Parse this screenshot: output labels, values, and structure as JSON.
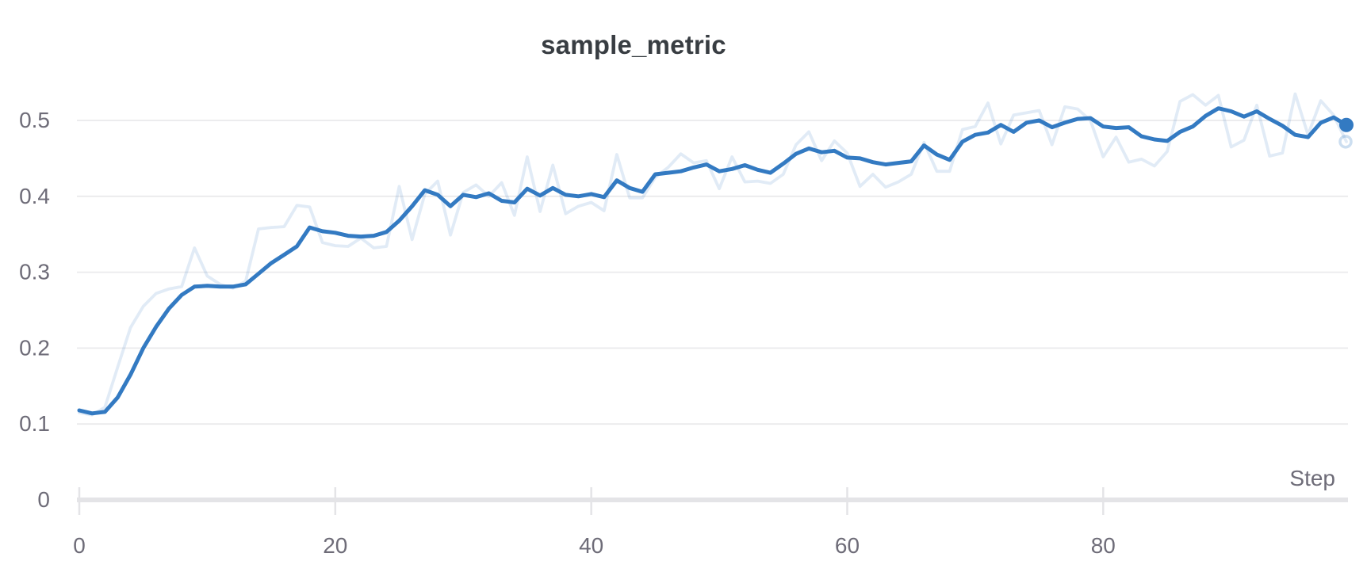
{
  "chart": {
    "title": "sample_metric",
    "x_axis_label": "Step"
  },
  "colors": {
    "line": "#337ac2",
    "raw_line_opacity": 0.15,
    "gridline": "#eaeaec",
    "axis_bar": "#e4e4e7",
    "tick_text": "#6e6c78",
    "title_text": "#383d42",
    "background": "#ffffff"
  },
  "chart_data": {
    "type": "line",
    "title": "sample_metric",
    "xlabel": "Step",
    "ylabel": "",
    "xlim": [
      0,
      99
    ],
    "ylim": [
      0,
      0.54
    ],
    "xticks": [
      0,
      20,
      40,
      60,
      80
    ],
    "yticks": [
      0,
      0.1,
      0.2,
      0.3,
      0.4,
      0.5
    ],
    "grid": "horizontal",
    "legend_position": "none",
    "x_description": "Step index, consecutive integers 0-99",
    "series": [
      {
        "name": "sample_metric (raw)",
        "style": "faded",
        "opacity": 0.15,
        "end_dot": "ring",
        "final_value": 0.472,
        "values": [
          0.115,
          0.112,
          0.122,
          0.175,
          0.227,
          0.255,
          0.272,
          0.278,
          0.281,
          0.332,
          0.295,
          0.284,
          0.279,
          0.288,
          0.357,
          0.359,
          0.36,
          0.388,
          0.386,
          0.339,
          0.335,
          0.334,
          0.345,
          0.332,
          0.334,
          0.413,
          0.343,
          0.403,
          0.42,
          0.349,
          0.405,
          0.415,
          0.4,
          0.418,
          0.375,
          0.452,
          0.38,
          0.441,
          0.377,
          0.387,
          0.392,
          0.381,
          0.455,
          0.398,
          0.398,
          0.425,
          0.438,
          0.456,
          0.444,
          0.447,
          0.41,
          0.452,
          0.419,
          0.42,
          0.417,
          0.429,
          0.468,
          0.485,
          0.447,
          0.473,
          0.457,
          0.413,
          0.429,
          0.412,
          0.419,
          0.429,
          0.471,
          0.433,
          0.433,
          0.488,
          0.492,
          0.523,
          0.469,
          0.507,
          0.51,
          0.513,
          0.468,
          0.518,
          0.515,
          0.5,
          0.452,
          0.478,
          0.445,
          0.449,
          0.44,
          0.459,
          0.525,
          0.534,
          0.52,
          0.533,
          0.465,
          0.474,
          0.52,
          0.453,
          0.457,
          0.535,
          0.481,
          0.526,
          0.507,
          0.472
        ]
      },
      {
        "name": "sample_metric (smoothed)",
        "style": "solid",
        "opacity": 1,
        "end_dot": "filled",
        "final_value": 0.494,
        "values": [
          0.118,
          0.114,
          0.116,
          0.135,
          0.165,
          0.2,
          0.228,
          0.252,
          0.27,
          0.281,
          0.282,
          0.281,
          0.281,
          0.284,
          0.298,
          0.312,
          0.323,
          0.334,
          0.359,
          0.354,
          0.352,
          0.348,
          0.347,
          0.348,
          0.353,
          0.368,
          0.387,
          0.408,
          0.402,
          0.387,
          0.402,
          0.399,
          0.404,
          0.394,
          0.392,
          0.41,
          0.401,
          0.411,
          0.402,
          0.4,
          0.403,
          0.399,
          0.421,
          0.411,
          0.406,
          0.429,
          0.431,
          0.433,
          0.438,
          0.442,
          0.433,
          0.436,
          0.441,
          0.435,
          0.431,
          0.443,
          0.456,
          0.463,
          0.458,
          0.46,
          0.451,
          0.45,
          0.445,
          0.442,
          0.444,
          0.446,
          0.467,
          0.455,
          0.448,
          0.472,
          0.481,
          0.484,
          0.494,
          0.485,
          0.497,
          0.5,
          0.491,
          0.497,
          0.502,
          0.503,
          0.492,
          0.49,
          0.491,
          0.479,
          0.475,
          0.473,
          0.485,
          0.492,
          0.506,
          0.516,
          0.512,
          0.505,
          0.512,
          0.502,
          0.493,
          0.481,
          0.478,
          0.497,
          0.504,
          0.494
        ]
      }
    ]
  }
}
